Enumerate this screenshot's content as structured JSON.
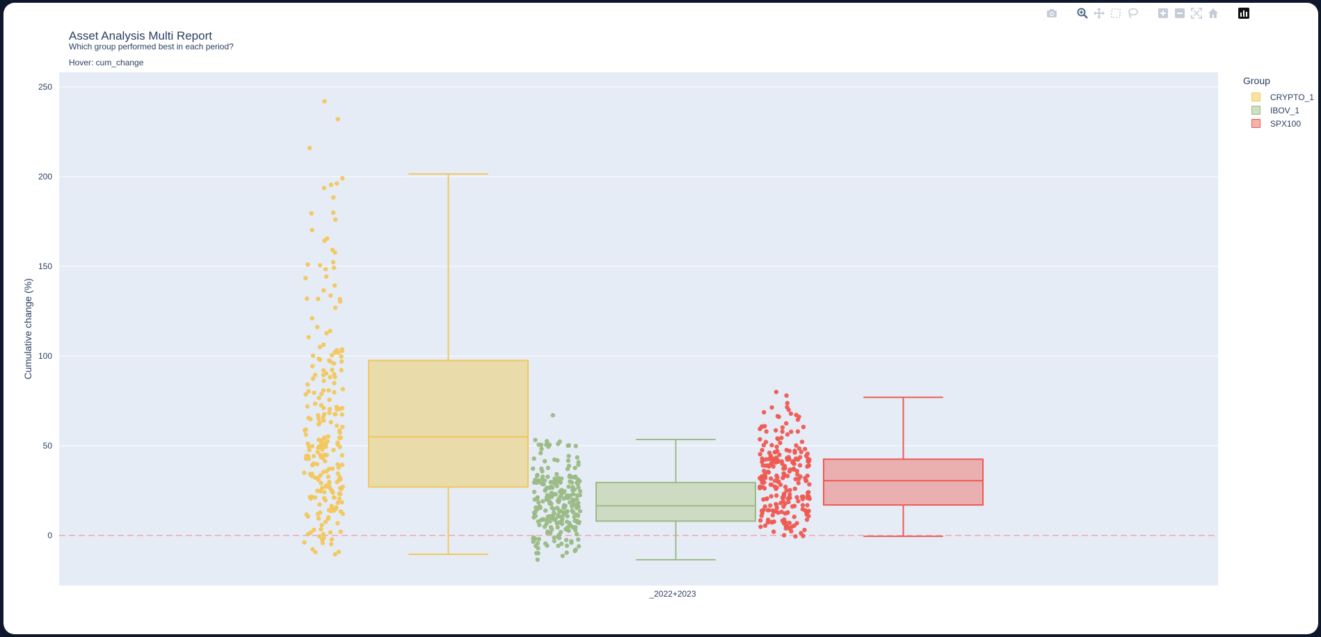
{
  "title": "Asset Analysis Multi Report",
  "subtitle": "Which group performed best in each period?",
  "hover_note": "Hover: cum_change",
  "legend_title": "Group",
  "modebar_icons": [
    "camera-icon",
    "zoom-icon",
    "pan-icon",
    "box-select-icon",
    "lasso-icon",
    "zoom-in-icon",
    "zoom-out-icon",
    "autoscale-icon",
    "reset-axes-icon",
    "plotly-logo-icon"
  ],
  "chart_data": {
    "type": "box",
    "categories": [
      "_2022+2023"
    ],
    "ylabel": "Cumulative change (%)",
    "xlabel": "",
    "ylim": [
      -28,
      250
    ],
    "yticks": [
      0,
      50,
      100,
      150,
      200,
      250
    ],
    "reference_line": {
      "y": 0,
      "style": "dashed",
      "color": "#f4a3b4"
    },
    "show_points": "all",
    "series": [
      {
        "name": "CRYPTO_1",
        "color": "#f2c75c",
        "fill": "#ead9a3",
        "box": {
          "lower_fence": -10.5,
          "q1": 27,
          "median": 55,
          "q3": 97.5,
          "upper_fence": 201.5
        },
        "points": {
          "count": 240,
          "max": 242,
          "min": -10.5,
          "outliers": [
            242,
            232,
            216
          ]
        }
      },
      {
        "name": "IBOV_1",
        "color": "#9bbb85",
        "fill": "#c9d9bd",
        "box": {
          "lower_fence": -13.5,
          "q1": 8,
          "median": 16.5,
          "q3": 29.5,
          "upper_fence": 53.5
        },
        "points": {
          "count": 240,
          "max": 67,
          "min": -13.5,
          "outliers": [
            67
          ]
        }
      },
      {
        "name": "SPX100",
        "color": "#ef5a52",
        "fill": "#eaa8a8",
        "box": {
          "lower_fence": -0.5,
          "q1": 17,
          "median": 30.5,
          "q3": 42.5,
          "upper_fence": 77
        },
        "points": {
          "count": 240,
          "max": 80,
          "min": -0.5,
          "outliers": [
            80,
            78
          ]
        }
      }
    ]
  }
}
